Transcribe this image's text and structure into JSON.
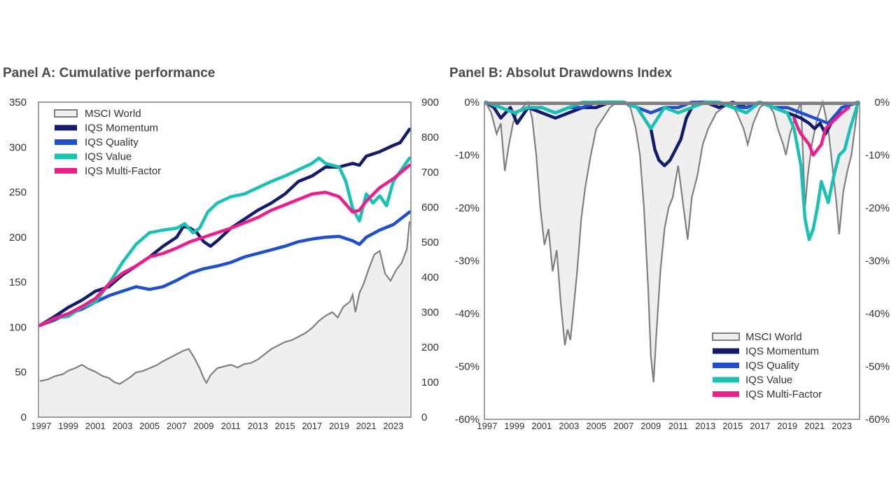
{
  "panels": {
    "a_title": "Panel A: Cumulative performance",
    "b_title": "Panel B: Absolut Drawdowns Index"
  },
  "colors": {
    "msci": "#7f7f7f",
    "msci_fill": "#efefef",
    "momentum": "#131c6b",
    "quality": "#1f4fcc",
    "value": "#17c1b3",
    "multifactor": "#ef1c8c"
  },
  "chart_data": [
    {
      "id": "panel_a",
      "type": "line",
      "title": "Panel A: Cumulative performance",
      "x_ticks": [
        "1997",
        "1999",
        "2001",
        "2003",
        "2005",
        "2007",
        "2009",
        "2011",
        "2013",
        "2015",
        "2017",
        "2019",
        "2021",
        "2023"
      ],
      "xlim": [
        1996.8,
        2024.3
      ],
      "y_left": {
        "ticks": [
          "0",
          "50",
          "100",
          "150",
          "200",
          "250",
          "300",
          "350"
        ],
        "ylim": [
          0,
          350
        ]
      },
      "y_right": {
        "ticks": [
          "0",
          "100",
          "200",
          "300",
          "400",
          "500",
          "600",
          "700",
          "800",
          "900"
        ],
        "ylim": [
          0,
          900
        ]
      },
      "legend": {
        "position": "top-left",
        "entries": [
          "MSCI World",
          "IQS Momentum",
          "IQS Quality",
          "IQS Value",
          "IQS Multi-Factor"
        ]
      },
      "series": [
        {
          "name": "MSCI World",
          "axis": "right",
          "style": "area",
          "color_key": "msci",
          "x": [
            1996.9,
            1997.5,
            1998,
            1998.6,
            1999,
            1999.5,
            2000,
            2000.5,
            2001,
            2001.5,
            2002,
            2002.4,
            2002.8,
            2003.2,
            2003.6,
            2004,
            2004.5,
            2005,
            2005.5,
            2006,
            2006.5,
            2007,
            2007.5,
            2007.9,
            2008.3,
            2008.7,
            2009.0,
            2009.2,
            2009.5,
            2010,
            2010.5,
            2011,
            2011.5,
            2012,
            2012.5,
            2013,
            2013.5,
            2014,
            2014.5,
            2015,
            2015.5,
            2016,
            2016.5,
            2017,
            2017.5,
            2018,
            2018.5,
            2018.9,
            2019.3,
            2019.8,
            2020.0,
            2020.2,
            2020.5,
            2020.8,
            2021.2,
            2021.6,
            2022.0,
            2022.4,
            2022.8,
            2023.2,
            2023.6,
            2024.0,
            2024.2
          ],
          "y": [
            103,
            108,
            117,
            123,
            133,
            140,
            150,
            138,
            130,
            118,
            112,
            100,
            95,
            105,
            115,
            128,
            132,
            140,
            148,
            160,
            170,
            180,
            190,
            195,
            170,
            140,
            112,
            98,
            120,
            140,
            145,
            150,
            142,
            152,
            155,
            165,
            180,
            195,
            205,
            215,
            220,
            230,
            240,
            255,
            275,
            290,
            300,
            285,
            315,
            330,
            350,
            300,
            355,
            380,
            425,
            465,
            475,
            410,
            390,
            420,
            440,
            480,
            560
          ]
        },
        {
          "name": "IQS Momentum",
          "axis": "left",
          "color_key": "momentum",
          "x": [
            1996.9,
            1998,
            1999,
            2000,
            2001,
            2002,
            2003,
            2004,
            2005,
            2006,
            2007,
            2007.5,
            2008,
            2008.5,
            2009,
            2009.5,
            2010,
            2011,
            2012,
            2013,
            2014,
            2015,
            2016,
            2017,
            2018,
            2019,
            2019.5,
            2020,
            2020.5,
            2021,
            2022,
            2023,
            2023.5,
            2024.2
          ],
          "y": [
            102,
            112,
            122,
            130,
            140,
            145,
            158,
            168,
            178,
            190,
            200,
            212,
            210,
            205,
            195,
            190,
            196,
            210,
            220,
            230,
            238,
            248,
            262,
            268,
            278,
            278,
            280,
            282,
            280,
            290,
            295,
            302,
            305,
            320
          ]
        },
        {
          "name": "IQS Quality",
          "axis": "left",
          "color_key": "quality",
          "x": [
            1996.9,
            1998,
            1999,
            2000,
            2001,
            2002,
            2003,
            2004,
            2005,
            2006,
            2007,
            2008,
            2009,
            2010,
            2011,
            2012,
            2013,
            2014,
            2015,
            2016,
            2017,
            2018,
            2019,
            2020,
            2020.5,
            2021,
            2022,
            2023,
            2024.2
          ],
          "y": [
            102,
            108,
            115,
            120,
            128,
            135,
            140,
            145,
            142,
            145,
            152,
            160,
            165,
            168,
            172,
            178,
            182,
            186,
            190,
            195,
            198,
            200,
            201,
            196,
            192,
            200,
            208,
            214,
            228
          ]
        },
        {
          "name": "IQS Value",
          "axis": "left",
          "color_key": "value",
          "x": [
            1996.9,
            1998,
            1999,
            2000,
            2001,
            2002,
            2003,
            2004,
            2005,
            2006,
            2007,
            2007.6,
            2008.2,
            2008.7,
            2009.3,
            2010,
            2011,
            2012,
            2013,
            2014,
            2015,
            2016,
            2017,
            2017.5,
            2018,
            2019,
            2019.5,
            2020,
            2020.5,
            2021,
            2021.5,
            2022,
            2022.5,
            2023,
            2024.2
          ],
          "y": [
            102,
            110,
            112,
            122,
            128,
            148,
            172,
            192,
            205,
            208,
            210,
            215,
            205,
            210,
            228,
            238,
            245,
            248,
            255,
            262,
            268,
            275,
            282,
            288,
            282,
            278,
            262,
            232,
            218,
            248,
            238,
            246,
            235,
            262,
            288
          ]
        },
        {
          "name": "IQS Multi-Factor",
          "axis": "left",
          "color_key": "multifactor",
          "x": [
            1996.9,
            1998,
            1999,
            2000,
            2001,
            2002,
            2003,
            2004,
            2005,
            2006,
            2007,
            2008,
            2009,
            2010,
            2011,
            2012,
            2013,
            2014,
            2015,
            2016,
            2017,
            2018,
            2019,
            2020,
            2020.5,
            2021,
            2022,
            2023,
            2024.2
          ],
          "y": [
            102,
            110,
            115,
            123,
            132,
            148,
            160,
            168,
            178,
            182,
            188,
            195,
            200,
            205,
            210,
            216,
            222,
            230,
            236,
            242,
            248,
            250,
            245,
            228,
            230,
            240,
            255,
            265,
            280
          ]
        }
      ]
    },
    {
      "id": "panel_b",
      "type": "area",
      "title": "Panel B: Absolut Drawdowns Index",
      "x_ticks": [
        "1997",
        "1999",
        "2001",
        "2003",
        "2005",
        "2007",
        "2009",
        "2011",
        "2013",
        "2015",
        "2017",
        "2019",
        "2021",
        "2023"
      ],
      "xlim": [
        1996.8,
        2024.3
      ],
      "y_ticks": [
        "0%",
        "-10%",
        "-20%",
        "-30%",
        "-40%",
        "-50%",
        "-60%"
      ],
      "ylim": [
        -60,
        0
      ],
      "legend": {
        "position": "bottom-right",
        "entries": [
          "MSCI World",
          "IQS Momentum",
          "IQS Quality",
          "IQS Value",
          "IQS Multi-Factor"
        ]
      },
      "series": [
        {
          "name": "MSCI World",
          "style": "area",
          "color_key": "msci",
          "x": [
            1996.9,
            1997.3,
            1997.7,
            1998.0,
            1998.3,
            1998.6,
            1998.9,
            1999.2,
            1999.6,
            2000.0,
            2000.3,
            2000.6,
            2000.9,
            2001.2,
            2001.5,
            2001.8,
            2002.1,
            2002.4,
            2002.7,
            2002.9,
            2003.1,
            2003.3,
            2003.6,
            2003.9,
            2004.2,
            2004.6,
            2005.0,
            2005.5,
            2006.0,
            2006.5,
            2007.0,
            2007.5,
            2007.9,
            2008.2,
            2008.5,
            2008.8,
            2009.0,
            2009.2,
            2009.4,
            2009.7,
            2010.0,
            2010.3,
            2010.6,
            2011.0,
            2011.4,
            2011.7,
            2012.0,
            2012.4,
            2012.8,
            2013.2,
            2013.8,
            2014.3,
            2014.8,
            2015.3,
            2015.8,
            2016.1,
            2016.5,
            2017.0,
            2017.5,
            2018.0,
            2018.3,
            2018.7,
            2018.9,
            2019.2,
            2019.7,
            2020.0,
            2020.15,
            2020.3,
            2020.5,
            2020.8,
            2021.2,
            2021.6,
            2022.0,
            2022.3,
            2022.6,
            2022.8,
            2023.1,
            2023.4,
            2023.7,
            2024.0,
            2024.2
          ],
          "y": [
            0,
            -2,
            -6,
            -4,
            -13,
            -8,
            -4,
            -2,
            -1,
            0,
            -3,
            -10,
            -20,
            -27,
            -24,
            -32,
            -28,
            -38,
            -46,
            -43,
            -45,
            -40,
            -32,
            -22,
            -16,
            -10,
            -5,
            -3,
            -1,
            0,
            0,
            -1,
            -5,
            -10,
            -20,
            -35,
            -48,
            -53,
            -44,
            -32,
            -24,
            -20,
            -18,
            -12,
            -20,
            -26,
            -18,
            -14,
            -8,
            -5,
            -2,
            -1,
            0,
            -2,
            -5,
            -8,
            -4,
            -1,
            0,
            -2,
            -5,
            -8,
            -10,
            -6,
            -2,
            0,
            -10,
            -20,
            -14,
            -8,
            -3,
            0,
            -5,
            -12,
            -19,
            -25,
            -17,
            -13,
            -10,
            -4,
            0
          ]
        },
        {
          "name": "IQS Momentum",
          "color_key": "momentum",
          "x": [
            1996.9,
            1997.5,
            1998.0,
            1998.7,
            1999.2,
            2000,
            2001,
            2002,
            2003,
            2004,
            2005,
            2006,
            2007,
            2008,
            2008.5,
            2009,
            2009.3,
            2009.6,
            2010.0,
            2010.4,
            2010.8,
            2011.2,
            2011.6,
            2012.0,
            2012.5,
            2013,
            2014,
            2015,
            2016,
            2017,
            2018,
            2019,
            2020,
            2020.6,
            2021.0,
            2021.4,
            2021.8,
            2022.0,
            2022.4,
            2023.0,
            2024.2
          ],
          "y": [
            0,
            -1,
            -3,
            -1,
            -4,
            -1,
            -2,
            -3,
            -2,
            -1,
            -1,
            0,
            0,
            -1,
            -3,
            -5,
            -9,
            -11,
            -12,
            -11,
            -9,
            -7,
            -3,
            -1,
            0,
            0,
            -1,
            0,
            -1,
            0,
            -1,
            -2,
            -3,
            -4,
            -5,
            -4,
            -6,
            -5,
            -3,
            -1,
            0
          ]
        },
        {
          "name": "IQS Quality",
          "color_key": "quality",
          "x": [
            1996.9,
            1998,
            1999,
            2000,
            2001,
            2002,
            2003,
            2004,
            2005,
            2006,
            2007,
            2008,
            2009,
            2010,
            2011,
            2012,
            2013,
            2014,
            2015,
            2016,
            2017,
            2018,
            2019,
            2020,
            2021,
            2022,
            2023,
            2024.2
          ],
          "y": [
            0,
            -1,
            -2,
            -1,
            -1,
            -2,
            -1,
            -1,
            0,
            0,
            0,
            -1,
            -2,
            -1,
            -1,
            0,
            0,
            0,
            -1,
            -1,
            0,
            -1,
            -1,
            -2,
            -3,
            -4,
            -1,
            0
          ]
        },
        {
          "name": "IQS Value",
          "color_key": "value",
          "x": [
            1996.9,
            1998,
            1999,
            2000,
            2001,
            2002,
            2003,
            2004,
            2005,
            2006,
            2007,
            2008,
            2008.5,
            2009,
            2009.5,
            2010,
            2011,
            2012,
            2013,
            2014,
            2015,
            2016,
            2017,
            2018,
            2019,
            2019.5,
            2020,
            2020.3,
            2020.6,
            2020.9,
            2021.2,
            2021.5,
            2022.0,
            2022.4,
            2022.8,
            2023.2,
            2023.6,
            2024.2
          ],
          "y": [
            0,
            -1,
            -2,
            -1,
            -1,
            -2,
            -1,
            0,
            0,
            0,
            0,
            -1,
            -3,
            -5,
            -3,
            -1,
            -2,
            -1,
            0,
            0,
            -1,
            -2,
            0,
            -1,
            -2,
            -5,
            -12,
            -22,
            -26,
            -24,
            -20,
            -15,
            -19,
            -14,
            -10,
            -9,
            -5,
            0
          ]
        },
        {
          "name": "IQS Multi-Factor",
          "color_key": "multifactor",
          "x": [
            2019.5,
            2019.8,
            2020.0,
            2020.3,
            2020.6,
            2020.9,
            2021.2,
            2021.5,
            2021.8,
            2022.2,
            2022.6,
            2023.0,
            2023.5
          ],
          "y": [
            -3,
            -5,
            -6,
            -7,
            -8,
            -10,
            -9,
            -8,
            -5,
            -4,
            -3,
            -2,
            -1
          ]
        }
      ]
    }
  ]
}
